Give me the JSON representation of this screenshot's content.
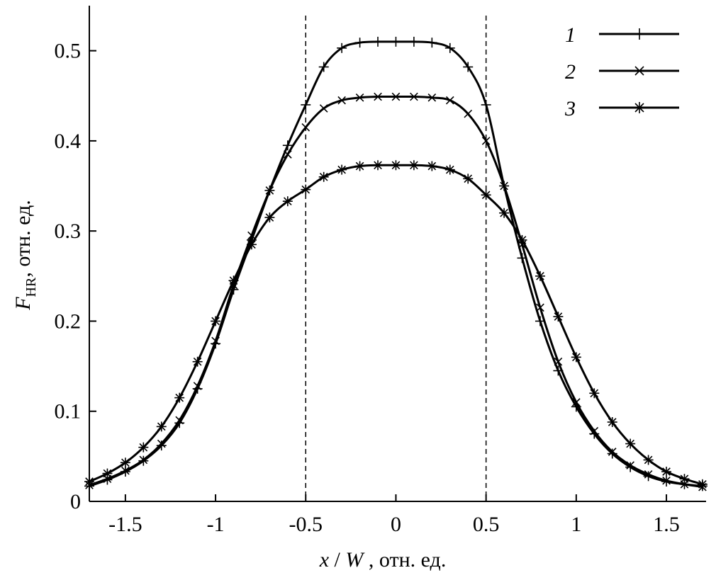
{
  "chart_data": {
    "type": "line",
    "xlabel_parts": [
      "x",
      " / ",
      "W",
      " , отн. ед."
    ],
    "ylabel_parts": [
      "F",
      "HR",
      ", отн. ед."
    ],
    "xlim": [
      -1.7,
      1.72
    ],
    "ylim": [
      0,
      0.55
    ],
    "x_ticks": [
      {
        "value": -1.5,
        "label": "-1.5"
      },
      {
        "value": -1,
        "label": "-1"
      },
      {
        "value": -0.5,
        "label": "-0.5"
      },
      {
        "value": 0,
        "label": "0"
      },
      {
        "value": 0.5,
        "label": "0.5"
      },
      {
        "value": 1,
        "label": "1"
      },
      {
        "value": 1.5,
        "label": "1.5"
      }
    ],
    "y_ticks": [
      {
        "value": 0,
        "label": "0"
      },
      {
        "value": 0.1,
        "label": "0.1"
      },
      {
        "value": 0.2,
        "label": "0.2"
      },
      {
        "value": 0.3,
        "label": "0.3"
      },
      {
        "value": 0.4,
        "label": "0.4"
      },
      {
        "value": 0.5,
        "label": "0.5"
      }
    ],
    "vlines": [
      -0.5,
      0.5
    ],
    "grid": false,
    "legend_position": "top-right",
    "x": [
      -1.7,
      -1.6,
      -1.5,
      -1.4,
      -1.3,
      -1.2,
      -1.1,
      -1.0,
      -0.9,
      -0.8,
      -0.7,
      -0.6,
      -0.5,
      -0.4,
      -0.3,
      -0.2,
      -0.1,
      0.0,
      0.1,
      0.2,
      0.3,
      0.4,
      0.5,
      0.6,
      0.7,
      0.8,
      0.9,
      1.0,
      1.1,
      1.2,
      1.3,
      1.4,
      1.5,
      1.6,
      1.7
    ],
    "series": [
      {
        "name": "1",
        "marker": "plus",
        "values": [
          0.017,
          0.024,
          0.033,
          0.045,
          0.062,
          0.087,
          0.125,
          0.175,
          0.235,
          0.29,
          0.345,
          0.395,
          0.44,
          0.482,
          0.503,
          0.509,
          0.51,
          0.51,
          0.51,
          0.509,
          0.503,
          0.482,
          0.44,
          0.35,
          0.27,
          0.2,
          0.145,
          0.105,
          0.075,
          0.053,
          0.038,
          0.028,
          0.022,
          0.019,
          0.017
        ]
      },
      {
        "name": "2",
        "marker": "x",
        "values": [
          0.018,
          0.025,
          0.034,
          0.046,
          0.064,
          0.09,
          0.128,
          0.178,
          0.24,
          0.295,
          0.345,
          0.385,
          0.415,
          0.436,
          0.445,
          0.448,
          0.449,
          0.449,
          0.449,
          0.448,
          0.445,
          0.43,
          0.4,
          0.35,
          0.285,
          0.215,
          0.155,
          0.11,
          0.078,
          0.055,
          0.04,
          0.03,
          0.023,
          0.019,
          0.016
        ]
      },
      {
        "name": "3",
        "marker": "star",
        "values": [
          0.022,
          0.031,
          0.043,
          0.06,
          0.083,
          0.115,
          0.155,
          0.2,
          0.245,
          0.285,
          0.315,
          0.333,
          0.346,
          0.36,
          0.368,
          0.372,
          0.373,
          0.373,
          0.373,
          0.372,
          0.368,
          0.358,
          0.34,
          0.32,
          0.29,
          0.25,
          0.205,
          0.16,
          0.12,
          0.088,
          0.064,
          0.046,
          0.033,
          0.025,
          0.019
        ]
      }
    ]
  }
}
